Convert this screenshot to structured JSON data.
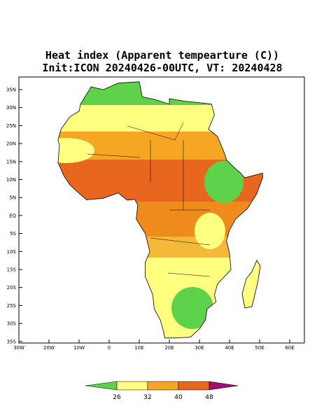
{
  "title": [
    "Heat index (Apparent tempearture (C))",
    "Init:ICON 20240426-00UTC, VT: 20240428"
  ],
  "map": {
    "lon_ticks": [
      "30W",
      "20W",
      "10W",
      "0",
      "10E",
      "20E",
      "30E",
      "40E",
      "50E",
      "60E"
    ],
    "lat_ticks": [
      "35N",
      "30N",
      "25N",
      "20N",
      "15N",
      "10N",
      "5N",
      "EQ",
      "5S",
      "10S",
      "15S",
      "20S",
      "25S",
      "30S",
      "35S"
    ]
  },
  "colorbar": {
    "ticks": [
      26,
      32,
      40,
      48
    ]
  }
}
